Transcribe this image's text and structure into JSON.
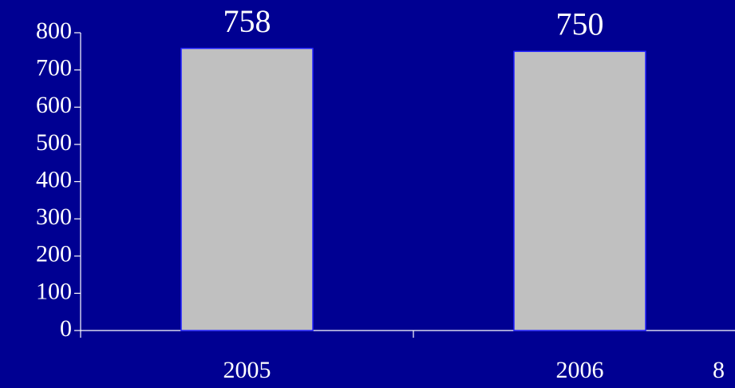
{
  "chart_data": {
    "type": "bar",
    "categories": [
      "2005",
      "2006"
    ],
    "values": [
      758,
      750
    ],
    "color": "#c0c0c0",
    "ylim": [
      0,
      800
    ],
    "yticks": [
      0,
      100,
      200,
      300,
      400,
      500,
      600,
      700,
      800
    ],
    "grid": false
  },
  "slide_number": "8"
}
